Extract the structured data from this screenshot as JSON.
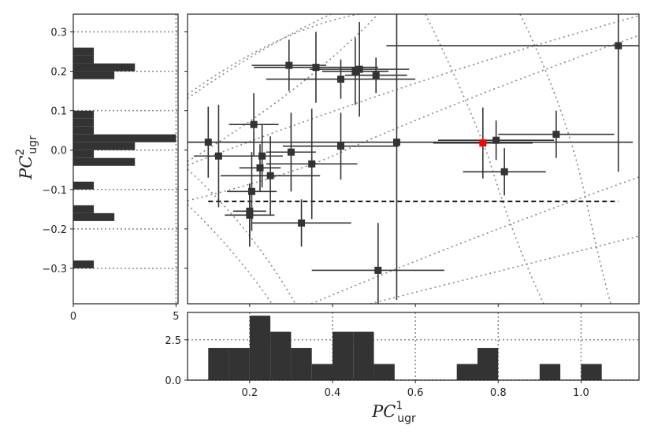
{
  "chart_data": {
    "type": "scatter",
    "xlabel_base": "PC",
    "xlabel_sub": "ugr",
    "xlabel_sup": "1",
    "ylabel_base": "PC",
    "ylabel_sub": "ugr",
    "ylabel_sup": "2",
    "xlim": [
      0.05,
      1.14
    ],
    "ylim": [
      -0.39,
      0.345
    ],
    "xticks": [
      0.2,
      0.4,
      0.6,
      0.8,
      1.0
    ],
    "xtick_labels": [
      "0.2",
      "0.4",
      "0.6",
      "0.8",
      "1.0"
    ],
    "yticks": [
      0.3,
      0.2,
      0.1,
      0.0,
      -0.1,
      -0.2,
      -0.3
    ],
    "ytick_labels": [
      "0.3",
      "0.2",
      "0.1",
      "0.0",
      "−0.1",
      "−0.2",
      "−0.3"
    ],
    "threshold_y": -0.13,
    "threshold_xrange": [
      0.1,
      1.09
    ],
    "points": [
      {
        "x": 0.1,
        "y": 0.02,
        "xerr": 0.07,
        "yerr": 0.09
      },
      {
        "x": 0.125,
        "y": -0.015,
        "xerr": 0.06,
        "yerr": 0.13
      },
      {
        "x": 0.21,
        "y": 0.065,
        "xerr": 0.06,
        "yerr": 0.08
      },
      {
        "x": 0.205,
        "y": -0.105,
        "xerr": 0.06,
        "yerr": 0.1
      },
      {
        "x": 0.2,
        "y": -0.165,
        "xerr": 0.06,
        "yerr": 0.08
      },
      {
        "x": 0.2,
        "y": -0.155,
        "xerr": 0.04,
        "yerr": 0.07
      },
      {
        "x": 0.23,
        "y": -0.015,
        "xerr": 0.05,
        "yerr": 0.08
      },
      {
        "x": 0.225,
        "y": -0.045,
        "xerr": 0.05,
        "yerr": 0.06
      },
      {
        "x": 0.25,
        "y": -0.065,
        "xerr": 0.12,
        "yerr": 0.1
      },
      {
        "x": 0.295,
        "y": 0.215,
        "xerr": 0.09,
        "yerr": 0.065
      },
      {
        "x": 0.3,
        "y": -0.005,
        "xerr": 0.06,
        "yerr": 0.1
      },
      {
        "x": 0.325,
        "y": -0.185,
        "xerr": 0.12,
        "yerr": 0.06
      },
      {
        "x": 0.35,
        "y": -0.035,
        "xerr": 0.11,
        "yerr": 0.14
      },
      {
        "x": 0.36,
        "y": 0.21,
        "xerr": 0.15,
        "yerr": 0.09
      },
      {
        "x": 0.42,
        "y": 0.18,
        "xerr": 0.18,
        "yerr": 0.05
      },
      {
        "x": 0.42,
        "y": 0.01,
        "xerr": 0.14,
        "yerr": 0.085
      },
      {
        "x": 0.455,
        "y": 0.2,
        "xerr": 0.08,
        "yerr": 0.085
      },
      {
        "x": 0.465,
        "y": 0.205,
        "xerr": 0.12,
        "yerr": 0.12
      },
      {
        "x": 0.505,
        "y": 0.19,
        "xerr": 0.075,
        "yerr": 0.045
      },
      {
        "x": 0.51,
        "y": -0.305,
        "xerr": 0.16,
        "yerr": 0.12
      },
      {
        "x": 0.555,
        "y": 0.02,
        "xerr": 0.57,
        "yerr": 0.4
      },
      {
        "x": 0.795,
        "y": 0.025,
        "xerr": 0.14,
        "yerr": 0.05
      },
      {
        "x": 0.815,
        "y": -0.055,
        "xerr": 0.1,
        "yerr": 0.06
      },
      {
        "x": 0.94,
        "y": 0.04,
        "xerr": 0.14,
        "yerr": 0.06
      },
      {
        "x": 1.09,
        "y": 0.265,
        "xerr": 0.56,
        "yerr": 0.32
      }
    ],
    "highlight_point": {
      "x": 0.763,
      "y": 0.018,
      "xerr": 0.12,
      "yerr": 0.09,
      "color": "#ff0000"
    },
    "marker_color": "#333333",
    "grid_color": "#888888",
    "bottom_hist": {
      "bins": [
        0.1,
        0.15,
        0.2,
        0.25,
        0.3,
        0.35,
        0.4,
        0.45,
        0.5,
        0.55,
        0.6,
        0.65,
        0.7,
        0.75,
        0.8,
        0.85,
        0.9,
        0.95,
        1.0,
        1.05,
        1.1
      ],
      "counts": [
        2,
        2,
        4,
        3,
        2,
        1,
        3,
        3,
        1,
        0,
        0,
        0,
        1,
        2,
        0,
        0,
        1,
        0,
        1,
        0
      ],
      "ylim": [
        0,
        4.2
      ],
      "yticks": [
        0.0,
        2.5
      ],
      "ytick_labels": [
        "0.0",
        "2.5"
      ]
    },
    "left_hist": {
      "bins": [
        0.26,
        0.24,
        0.22,
        0.2,
        0.18,
        0.16,
        0.14,
        0.12,
        0.1,
        0.08,
        0.06,
        0.04,
        0.02,
        0.0,
        -0.02,
        -0.04,
        -0.06,
        -0.08,
        -0.1,
        -0.12,
        -0.14,
        -0.16,
        -0.18,
        -0.2,
        -0.22,
        -0.24,
        -0.26,
        -0.28,
        -0.3,
        -0.32
      ],
      "counts": [
        1,
        1,
        3,
        2,
        0,
        0,
        0,
        0,
        1,
        1,
        1,
        5,
        3,
        1,
        3,
        0,
        0,
        1,
        0,
        0,
        1,
        2,
        0,
        0,
        0,
        0,
        0,
        1,
        0
      ],
      "xlim": [
        0,
        5.1
      ],
      "xticks": [
        0,
        5
      ],
      "xtick_labels": [
        "0",
        "5"
      ]
    }
  }
}
